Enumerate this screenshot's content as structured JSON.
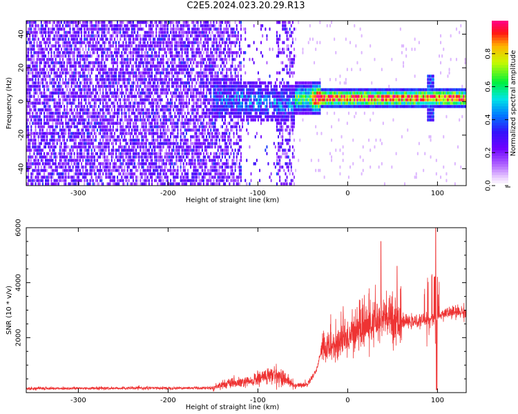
{
  "title": "C2E5.2024.023.20.29.R13",
  "chart_data": [
    {
      "type": "heatmap",
      "xlabel": "Height of straight line (km)",
      "ylabel": "Frequency (Hz)",
      "xlim": [
        -358,
        132
      ],
      "ylim": [
        -50,
        48
      ],
      "xticks": [
        -300,
        -200,
        -100,
        0,
        100
      ],
      "yticks": [
        -40,
        -20,
        0,
        20,
        40
      ],
      "colorbar": {
        "label": "Normalized spectral amplitude",
        "range": [
          0.0,
          1.0
        ],
        "ticks": [
          0.0,
          0.2,
          0.4,
          0.6,
          0.8
        ]
      },
      "features": {
        "noise_region_x": [
          -358,
          -60
        ],
        "gap_x": [
          -118,
          -78
        ],
        "narrowband_signal_x": [
          -60,
          132
        ],
        "narrowband_center_hz": 1
      }
    },
    {
      "type": "line",
      "xlabel": "Height of straight line (km)",
      "ylabel": "SNR (10 * v/v)",
      "xlim": [
        -358,
        132
      ],
      "ylim": [
        0,
        6000
      ],
      "xticks": [
        -300,
        -200,
        -100,
        0,
        100
      ],
      "yticks": [
        2000,
        4000,
        6000
      ],
      "color": "#ee3333",
      "profile": [
        [
          -358,
          150
        ],
        [
          -150,
          170
        ],
        [
          -140,
          300
        ],
        [
          -110,
          380
        ],
        [
          -95,
          560
        ],
        [
          -80,
          650
        ],
        [
          -70,
          520
        ],
        [
          -60,
          250
        ],
        [
          -45,
          300
        ],
        [
          -35,
          800
        ],
        [
          -28,
          1700
        ],
        [
          -20,
          1600
        ],
        [
          -10,
          1800
        ],
        [
          0,
          2000
        ],
        [
          10,
          2300
        ],
        [
          20,
          2400
        ],
        [
          30,
          2500
        ],
        [
          40,
          2700
        ],
        [
          50,
          2650
        ],
        [
          60,
          2600
        ],
        [
          70,
          2550
        ],
        [
          80,
          2600
        ],
        [
          90,
          2700
        ],
        [
          100,
          2800
        ],
        [
          110,
          2900
        ],
        [
          132,
          2950
        ]
      ],
      "spikes": [
        [
          37,
          5500
        ],
        [
          55,
          4600
        ],
        [
          98,
          6000
        ],
        [
          100,
          4200
        ]
      ]
    }
  ]
}
